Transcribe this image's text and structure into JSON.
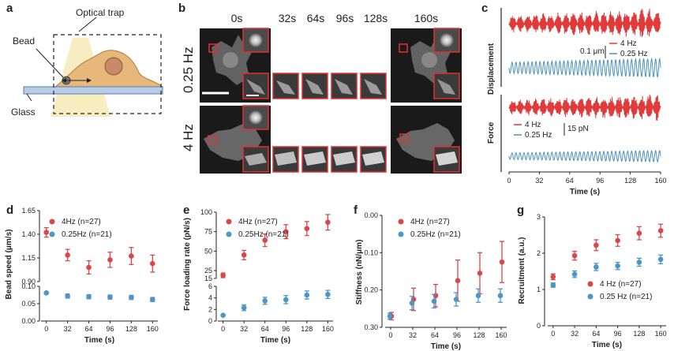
{
  "labels": {
    "a": "a",
    "b": "b",
    "c": "c",
    "d": "d",
    "e": "e",
    "f": "f",
    "g": "g"
  },
  "panel_a": {
    "optical_trap": "Optical trap",
    "bead": "Bead",
    "glass": "Glass"
  },
  "panel_b": {
    "times": [
      "0s",
      "32s",
      "64s",
      "96s",
      "128s",
      "160s"
    ],
    "row1": "0.25 Hz",
    "row2": "4 Hz"
  },
  "panel_c": {
    "ylabel_top": "Displacement",
    "ylabel_bottom": "Force",
    "xlabel": "Time (s)",
    "xticks": [
      "0",
      "32",
      "64",
      "96",
      "128",
      "160"
    ],
    "disp_scale": "0.1 μm",
    "force_scale": "15 pN",
    "legend_4hz": "4 Hz",
    "legend_025hz": "0.25 Hz",
    "colors": {
      "red": "#e03a3a",
      "blue": "#4a90c0"
    }
  },
  "chart_data": [
    {
      "type": "scatter",
      "panel": "d",
      "ylabel": "Bead speed (μm/s)",
      "xlabel": "Time (s)",
      "x": [
        0,
        32,
        64,
        96,
        128,
        160
      ],
      "axis_break": true,
      "yticks_upper": [
        "1.65",
        "1.40",
        "1.15",
        "0.90"
      ],
      "yticks_lower": [
        "0.10",
        "0.05",
        "0.00"
      ],
      "series": [
        {
          "name": "4Hz (n=27)",
          "color": "#d9474a",
          "values": [
            1.42,
            1.18,
            1.05,
            1.13,
            1.17,
            1.09
          ],
          "err": [
            0.05,
            0.06,
            0.07,
            0.08,
            0.09,
            0.09
          ]
        },
        {
          "name": "0.25Hz (n=21)",
          "color": "#4d97c6",
          "values": [
            0.081,
            0.072,
            0.07,
            0.069,
            0.068,
            0.062
          ],
          "err": [
            0.003,
            0.006,
            0.006,
            0.006,
            0.006,
            0.006
          ]
        }
      ]
    },
    {
      "type": "scatter",
      "panel": "e",
      "ylabel": "Force loading rate (pN/s)",
      "xlabel": "Time (s)",
      "x": [
        0,
        32,
        64,
        96,
        128,
        160
      ],
      "axis_break": true,
      "yticks_upper": [
        "100",
        "75",
        "50",
        "25",
        "15"
      ],
      "yticks_lower": [
        "6",
        "4",
        "2",
        "0"
      ],
      "series": [
        {
          "name": "4Hz (n=27)",
          "color": "#d9474a",
          "values": [
            19,
            45,
            64,
            75,
            79,
            87
          ],
          "err": [
            3,
            6,
            8,
            9,
            9,
            10
          ]
        },
        {
          "name": "0.25Hz (n=21)",
          "color": "#4d97c6",
          "values": [
            1.0,
            2.3,
            3.5,
            3.7,
            4.5,
            4.6
          ],
          "err": [
            0.1,
            0.5,
            0.6,
            0.7,
            0.7,
            0.7
          ]
        }
      ]
    },
    {
      "type": "scatter",
      "panel": "f",
      "ylabel": "Stiffness (nN/μm)",
      "xlabel": "Time (s)",
      "x": [
        0,
        32,
        64,
        96,
        128,
        160
      ],
      "xticks": [
        "0",
        "32",
        "64",
        "96",
        "128",
        "160"
      ],
      "yticks": [
        "0.00",
        "0.10",
        "0.20",
        "0.30"
      ],
      "ylim": [
        0,
        0.3
      ],
      "series": [
        {
          "name": "4Hz (n=27)",
          "color": "#d9474a",
          "values": [
            0.03,
            0.075,
            0.085,
            0.125,
            0.145,
            0.175
          ],
          "err": [
            0.01,
            0.03,
            0.03,
            0.055,
            0.055,
            0.055
          ]
        },
        {
          "name": "0.25Hz (n=21)",
          "color": "#4d97c6",
          "values": [
            0.03,
            0.065,
            0.07,
            0.075,
            0.085,
            0.085
          ],
          "err": [
            0.008,
            0.018,
            0.018,
            0.018,
            0.018,
            0.018
          ]
        }
      ]
    },
    {
      "type": "scatter",
      "panel": "g",
      "ylabel": "Recruitment (a.u.)",
      "xlabel": "Time (s)",
      "x": [
        0,
        32,
        64,
        96,
        128,
        160
      ],
      "xticks": [
        "0",
        "32",
        "64",
        "96",
        "128",
        "160"
      ],
      "yticks": [
        "0",
        "1",
        "2",
        "3"
      ],
      "ylim": [
        0,
        3
      ],
      "series": [
        {
          "name": "4 Hz (n=27)",
          "color": "#d9474a",
          "values": [
            1.35,
            1.93,
            2.22,
            2.35,
            2.55,
            2.62
          ],
          "err": [
            0.08,
            0.12,
            0.15,
            0.16,
            0.18,
            0.18
          ]
        },
        {
          "name": "0.25 Hz (n=21)",
          "color": "#4d97c6",
          "values": [
            1.12,
            1.42,
            1.62,
            1.65,
            1.75,
            1.83
          ],
          "err": [
            0.06,
            0.09,
            0.1,
            0.1,
            0.11,
            0.12
          ]
        }
      ]
    }
  ]
}
